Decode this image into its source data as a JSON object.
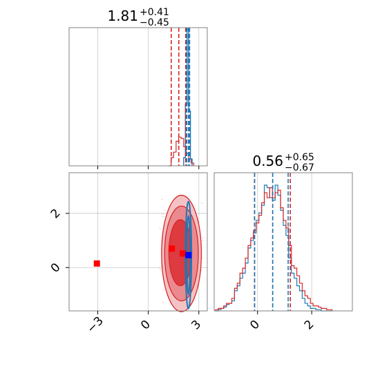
{
  "chart_data": [
    {
      "type": "histogram",
      "panel": "top-left",
      "title_value": "1.81",
      "title_plus": "+0.41",
      "title_minus": "−0.45",
      "xlim": [
        -4.7,
        3.5
      ],
      "x_ticks": [
        -3,
        0,
        3
      ],
      "tick_labels_shown": false,
      "grid": true,
      "series": [
        {
          "color": "#d62728",
          "quantiles": [
            1.36,
            1.81,
            2.22
          ]
        },
        {
          "color": "#1f77b4",
          "quantiles": [
            2.28,
            2.38,
            2.45
          ]
        }
      ],
      "red_hist": {
        "bin_edges": [
          1.2,
          1.35,
          1.5,
          1.65,
          1.8,
          1.95,
          2.1,
          2.25,
          2.4,
          2.55,
          2.7
        ],
        "counts": [
          0.0,
          0.06,
          0.1,
          0.18,
          0.21,
          0.2,
          0.14,
          0.09,
          0.05,
          0.02
        ]
      },
      "blue_hist": {
        "bin_edges": [
          2.1,
          2.2,
          2.3,
          2.4,
          2.5,
          2.6
        ],
        "counts": [
          0.06,
          0.45,
          1.0,
          0.4,
          0.05
        ]
      }
    },
    {
      "type": "scatter",
      "panel": "bottom-left",
      "xlim": [
        -4.7,
        3.5
      ],
      "ylim": [
        -1.6,
        3.5
      ],
      "x_ticks": [
        -3,
        0,
        3
      ],
      "x_tick_labels": [
        "−3",
        "0",
        "3"
      ],
      "y_ticks": [
        0,
        2
      ],
      "y_tick_labels": [
        "0",
        "2"
      ],
      "grid": true,
      "red_contours": [
        {
          "cx": 1.97,
          "cy": 0.52,
          "rx": 1.18,
          "ry": 2.15,
          "fill": "#f4c2c4"
        },
        {
          "cx": 1.97,
          "cy": 0.52,
          "rx": 1.0,
          "ry": 1.75,
          "fill": "#ea8a8f"
        },
        {
          "cx": 1.9,
          "cy": 0.55,
          "rx": 0.68,
          "ry": 1.22,
          "fill": "#dd3b40"
        }
      ],
      "blue_contours": [
        {
          "cx": 2.38,
          "cy": 0.46,
          "rx": 0.18,
          "ry": 1.98
        },
        {
          "cx": 2.38,
          "cy": 0.46,
          "rx": 0.1,
          "ry": 1.45
        }
      ],
      "markers": [
        {
          "x": -3.05,
          "y": 0.15,
          "color": "#ff0000"
        },
        {
          "x": 1.4,
          "y": 0.7,
          "color": "#ff0000"
        },
        {
          "x": 2.05,
          "y": 0.52,
          "color": "#ff0000"
        },
        {
          "x": 2.38,
          "y": 0.46,
          "color": "#0000ff"
        }
      ]
    },
    {
      "type": "histogram",
      "panel": "bottom-right",
      "title_value": "0.56",
      "title_plus": "+0.65",
      "title_minus": "−0.67",
      "xlim": [
        -1.6,
        3.5
      ],
      "x_ticks": [
        0,
        2
      ],
      "x_tick_labels": [
        "0",
        "2"
      ],
      "grid": true,
      "series": [
        {
          "color": "#d62728",
          "quantiles": [
            -0.11,
            0.56,
            1.21
          ]
        },
        {
          "color": "#1f77b4",
          "quantiles": [
            -0.11,
            0.56,
            1.13
          ]
        }
      ],
      "bin_edges": [
        -1.55,
        -1.45,
        -1.35,
        -1.25,
        -1.15,
        -1.05,
        -0.95,
        -0.85,
        -0.75,
        -0.65,
        -0.55,
        -0.45,
        -0.35,
        -0.25,
        -0.15,
        -0.05,
        0.05,
        0.15,
        0.25,
        0.35,
        0.45,
        0.55,
        0.65,
        0.75,
        0.85,
        0.95,
        1.05,
        1.15,
        1.25,
        1.35,
        1.45,
        1.55,
        1.65,
        1.75,
        1.85,
        1.95,
        2.05,
        2.15,
        2.25,
        2.35,
        2.45,
        2.55,
        2.65,
        2.75
      ],
      "red_counts": [
        0.01,
        0.02,
        0.02,
        0.04,
        0.06,
        0.06,
        0.1,
        0.18,
        0.22,
        0.3,
        0.34,
        0.42,
        0.52,
        0.58,
        0.64,
        0.7,
        0.76,
        0.86,
        0.94,
        0.9,
        0.98,
        0.9,
        0.94,
        0.96,
        0.82,
        0.72,
        0.66,
        0.52,
        0.36,
        0.34,
        0.28,
        0.22,
        0.16,
        0.12,
        0.1,
        0.06,
        0.04,
        0.04,
        0.03,
        0.02,
        0.02,
        0.01,
        0.01
      ],
      "blue_counts": [
        0.0,
        0.01,
        0.02,
        0.03,
        0.05,
        0.06,
        0.08,
        0.16,
        0.2,
        0.26,
        0.3,
        0.38,
        0.5,
        0.56,
        0.62,
        0.72,
        0.78,
        0.84,
        1.0,
        0.98,
        0.9,
        0.88,
        1.0,
        0.92,
        0.8,
        0.68,
        0.6,
        0.42,
        0.3,
        0.26,
        0.2,
        0.16,
        0.1,
        0.06,
        0.04,
        0.02,
        0.02,
        0.01,
        0.01,
        0.0,
        0.0,
        0.0,
        0.0
      ]
    }
  ],
  "colors": {
    "red": "#d62728",
    "blue": "#1f77b4",
    "grid": "#c8c8c8",
    "axes": "#808080"
  }
}
